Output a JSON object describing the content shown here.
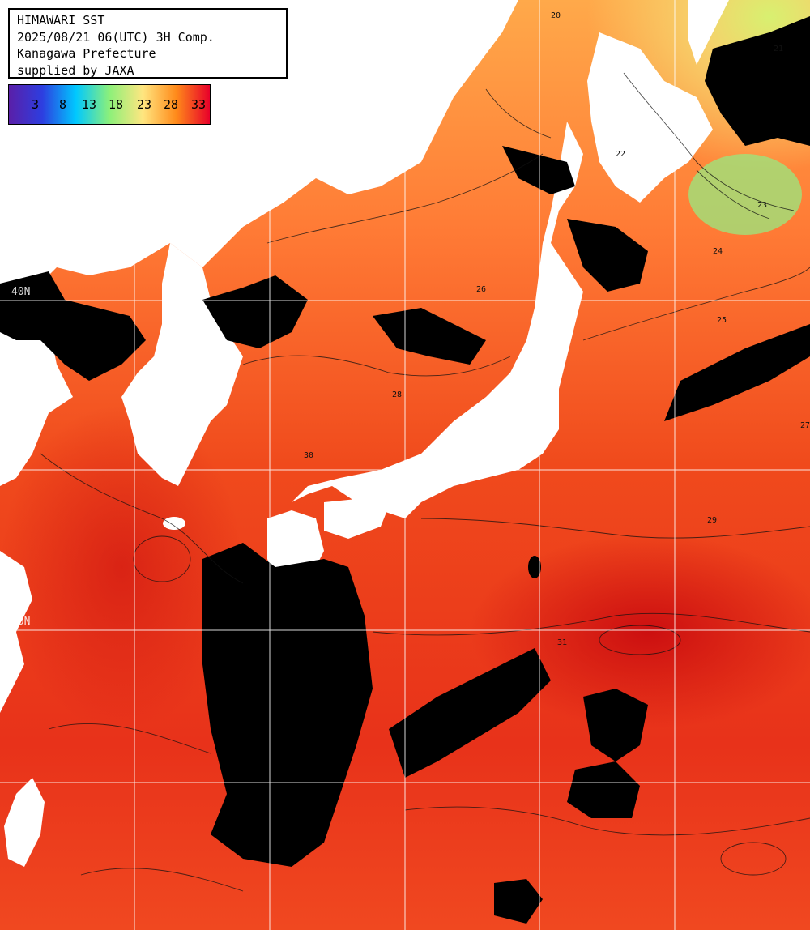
{
  "header": {
    "line1": "HIMAWARI SST",
    "line2": "2025/08/21 06(UTC) 3H Comp.",
    "line3": "Kanagawa Prefecture",
    "line4": "supplied by JAXA"
  },
  "colorbar": {
    "ticks": [
      "3",
      "8",
      "13",
      "18",
      "23",
      "28",
      "33"
    ],
    "colors": [
      "#5a1fa8",
      "#2d3ee0",
      "#00c8ff",
      "#8cf07a",
      "#ffe680",
      "#ff8a1a",
      "#e8002a"
    ]
  },
  "grid": {
    "lat_labels": [
      "40N",
      "30N"
    ]
  },
  "contour_labels": [
    "20",
    "21",
    "22",
    "23",
    "24",
    "25",
    "26",
    "27",
    "28",
    "29",
    "30",
    "31"
  ],
  "palette": {
    "land": "#ffffff",
    "cloud": "#000000",
    "warm_sea": "#e8401a",
    "hot_sea": "#d81e12",
    "mild_sea": "#ff8a3c",
    "cool_sea": "#f7c870",
    "cold_sea": "#a8e87a",
    "gridline": "#ffffff"
  }
}
